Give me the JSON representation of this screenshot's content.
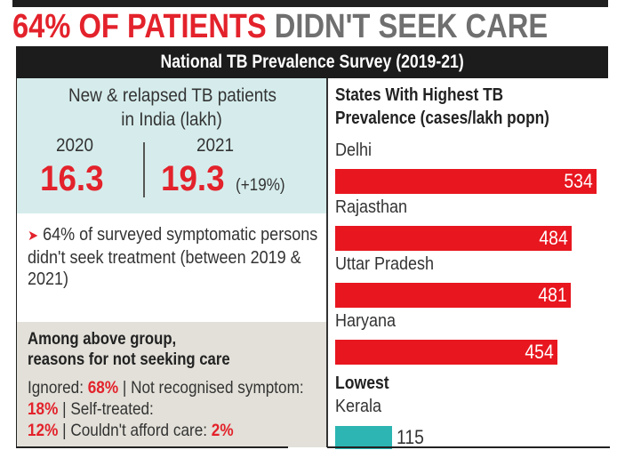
{
  "headline": {
    "red_part": "64% OF PATIENTS",
    "grey_part": "DIDN'T SEEK CARE"
  },
  "subtitle": "National TB Prevalence Survey (2019-21)",
  "left_panel": {
    "cases_title_line1": "New & relapsed TB patients",
    "cases_title_line2": "in India (lakh)",
    "years": [
      {
        "year": "2020",
        "value": "16.3"
      },
      {
        "year": "2021",
        "value": "19.3",
        "change": "(+19%)"
      }
    ],
    "note": "64% of surveyed symptomatic persons didn't seek treatment (between 2019 & 2021)",
    "reasons_title_line1": "Among above group,",
    "reasons_title_line2": "reasons for not seeking care",
    "reasons": [
      {
        "label": "Ignored:",
        "value": "68%"
      },
      {
        "label": "Not recognised symptom:",
        "value": "18%"
      },
      {
        "label": "Self-treated:",
        "value": "12%"
      },
      {
        "label": "Couldn't afford care:",
        "value": "2%"
      }
    ]
  },
  "colors": {
    "accent_red": "#e3222b",
    "bar_red": "#e8161f",
    "lowest_teal": "#2cb5b2",
    "panel_cyan": "#d6ecec",
    "panel_beige": "#e2e0d8",
    "headline_grey": "#6f6f6f"
  },
  "chart_data": {
    "type": "bar",
    "orientation": "horizontal",
    "title": "States With Highest TB Prevalence (cases/lakh popn)",
    "title_line1": "States With Highest TB",
    "title_line2": "Prevalence (cases/lakh popn)",
    "categories": [
      "Delhi",
      "Rajasthan",
      "Uttar Pradesh",
      "Haryana"
    ],
    "values": [
      534,
      484,
      481,
      454
    ],
    "value_labels": [
      "534",
      "484",
      "481",
      "454"
    ],
    "xlim": [
      0,
      534
    ],
    "lowest": {
      "heading": "Lowest",
      "category": "Kerala",
      "value": 115,
      "value_label": "115"
    },
    "grid": false,
    "legend": "none"
  }
}
